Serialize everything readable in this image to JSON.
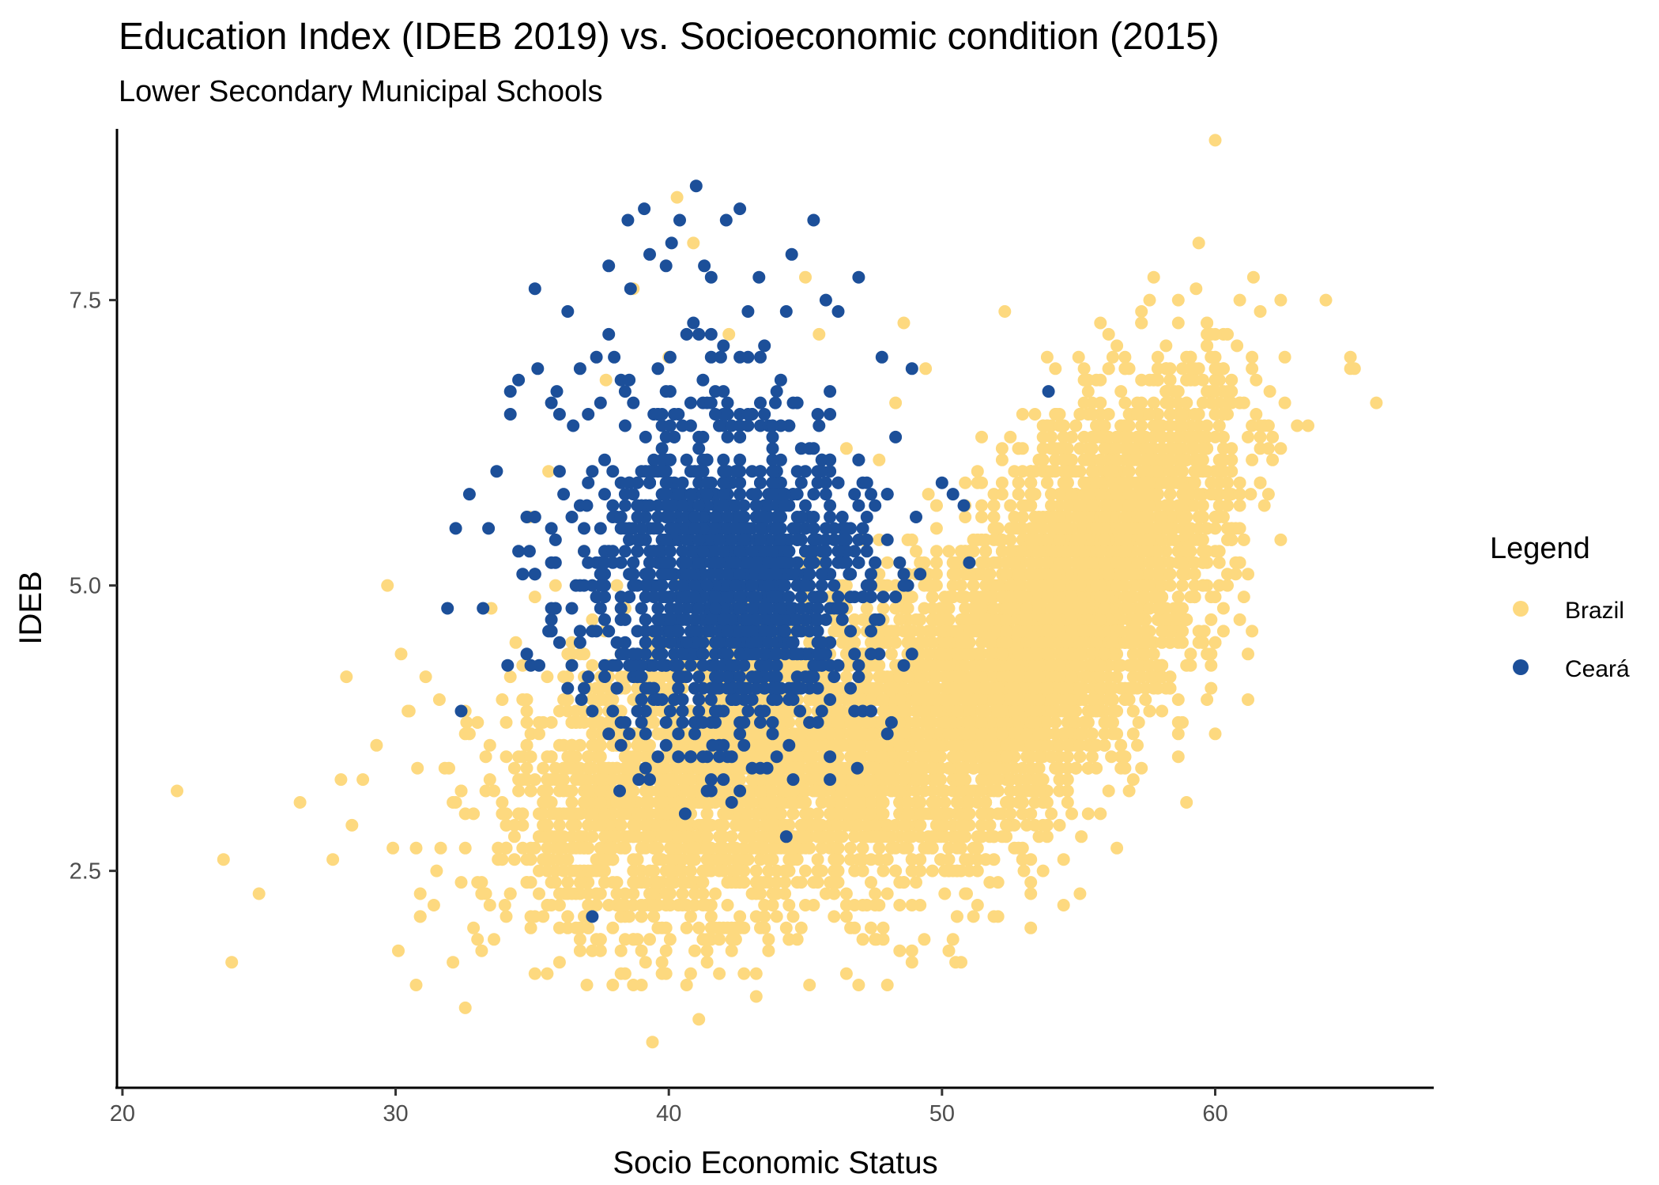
{
  "chart_data": {
    "type": "scatter",
    "title": "Education Index (IDEB 2019) vs. Socioeconomic condition (2015)",
    "subtitle": "Lower Secondary Municipal Schools",
    "xlabel": "Socio Economic Status",
    "ylabel": "IDEB",
    "xlim": [
      19.8,
      68
    ],
    "ylim": [
      0.6,
      9.0
    ],
    "x_ticks": [
      20,
      30,
      40,
      50,
      60
    ],
    "x_tick_labels": [
      "20",
      "30",
      "40",
      "50",
      "60"
    ],
    "y_ticks": [
      2.5,
      5.0,
      7.5
    ],
    "y_tick_labels": [
      "2.5",
      "5.0",
      "7.5"
    ],
    "grid": false,
    "legend": {
      "title": "Legend",
      "position": "right",
      "entries": [
        {
          "name": "Brazil",
          "color": "#FDD97F"
        },
        {
          "name": "Ceará",
          "color": "#1C4F99"
        }
      ]
    },
    "series": [
      {
        "name": "Brazil",
        "color": "#FDD97F",
        "points": [
          [
            22.0,
            3.2
          ],
          [
            23.7,
            2.6
          ],
          [
            24.0,
            1.7
          ],
          [
            25.0,
            2.3
          ],
          [
            26.5,
            3.1
          ],
          [
            27.7,
            2.6
          ],
          [
            28.0,
            3.3
          ],
          [
            28.2,
            4.2
          ],
          [
            28.4,
            2.9
          ],
          [
            28.8,
            3.3
          ],
          [
            29.3,
            3.6
          ],
          [
            29.7,
            5.0
          ],
          [
            29.9,
            2.7
          ],
          [
            30.1,
            1.8
          ],
          [
            30.2,
            4.4
          ],
          [
            30.5,
            3.9
          ],
          [
            30.8,
            3.4
          ],
          [
            31.1,
            4.2
          ],
          [
            31.4,
            2.2
          ],
          [
            31.6,
            4.0
          ],
          [
            32.2,
            3.1
          ],
          [
            32.6,
            3.8
          ],
          [
            33.0,
            2.4
          ],
          [
            33.5,
            4.8
          ],
          [
            34.0,
            2.2
          ],
          [
            34.4,
            4.5
          ],
          [
            34.9,
            5.6
          ],
          [
            35.6,
            6.0
          ],
          [
            36.2,
            2.3
          ],
          [
            37.0,
            1.5
          ],
          [
            37.7,
            6.8
          ],
          [
            38.7,
            7.6
          ],
          [
            39.4,
            1.0
          ],
          [
            40.0,
            7.0
          ],
          [
            40.3,
            8.4
          ],
          [
            40.9,
            8.0
          ],
          [
            41.4,
            1.7
          ],
          [
            42.2,
            7.2
          ],
          [
            43.2,
            1.4
          ],
          [
            44.3,
            2.0
          ],
          [
            45.0,
            7.7
          ],
          [
            45.5,
            7.2
          ],
          [
            46.5,
            6.2
          ],
          [
            47.6,
            1.9
          ],
          [
            48.0,
            1.5
          ],
          [
            48.3,
            6.6
          ],
          [
            48.6,
            7.3
          ],
          [
            49.4,
            6.9
          ],
          [
            50.5,
            1.7
          ],
          [
            51.3,
            2.2
          ],
          [
            52.3,
            7.4
          ],
          [
            53.0,
            2.5
          ],
          [
            54.2,
            6.5
          ],
          [
            55.0,
            7.0
          ],
          [
            56.2,
            3.5
          ],
          [
            57.3,
            7.3
          ],
          [
            58.3,
            6.1
          ],
          [
            59.3,
            7.6
          ],
          [
            60.1,
            6.9
          ],
          [
            60.8,
            7.1
          ],
          [
            61.4,
            7.7
          ],
          [
            62.0,
            6.7
          ],
          [
            63.4,
            6.4
          ],
          [
            65.9,
            6.6
          ],
          [
            59.6,
            4.6
          ],
          [
            61.3,
            5.8
          ],
          [
            57.2,
            3.8
          ],
          [
            55.1,
            2.8
          ],
          [
            50.9,
            2.3
          ],
          [
            46.1,
            2.4
          ]
        ]
      },
      {
        "name": "Ceará",
        "color": "#1C4F99",
        "points": [
          [
            31.9,
            4.8
          ],
          [
            32.2,
            5.5
          ],
          [
            32.4,
            3.9
          ],
          [
            32.7,
            5.8
          ],
          [
            33.2,
            4.8
          ],
          [
            33.4,
            5.5
          ],
          [
            33.7,
            6.0
          ],
          [
            34.1,
            4.3
          ],
          [
            34.5,
            6.8
          ],
          [
            34.9,
            5.3
          ],
          [
            35.2,
            6.9
          ],
          [
            35.6,
            4.6
          ],
          [
            35.9,
            6.7
          ],
          [
            36.3,
            7.4
          ],
          [
            36.5,
            6.4
          ],
          [
            36.8,
            4.0
          ],
          [
            37.0,
            5.7
          ],
          [
            37.2,
            2.1
          ],
          [
            37.5,
            6.6
          ],
          [
            37.8,
            3.7
          ],
          [
            38.0,
            7.0
          ],
          [
            38.2,
            3.2
          ],
          [
            38.5,
            8.2
          ],
          [
            38.6,
            7.6
          ],
          [
            38.9,
            3.3
          ],
          [
            39.1,
            8.3
          ],
          [
            39.3,
            7.9
          ],
          [
            39.6,
            6.5
          ],
          [
            39.9,
            3.6
          ],
          [
            40.1,
            8.0
          ],
          [
            40.4,
            8.2
          ],
          [
            40.6,
            3.0
          ],
          [
            40.9,
            7.3
          ],
          [
            41.0,
            8.5
          ],
          [
            41.3,
            7.8
          ],
          [
            41.6,
            3.6
          ],
          [
            41.9,
            7.0
          ],
          [
            42.1,
            8.2
          ],
          [
            42.3,
            3.5
          ],
          [
            42.6,
            8.3
          ],
          [
            42.9,
            7.0
          ],
          [
            43.3,
            7.7
          ],
          [
            43.6,
            3.4
          ],
          [
            43.9,
            6.6
          ],
          [
            44.3,
            7.4
          ],
          [
            44.5,
            7.9
          ],
          [
            44.8,
            3.9
          ],
          [
            45.3,
            8.2
          ],
          [
            45.5,
            6.4
          ],
          [
            45.9,
            4.0
          ],
          [
            46.2,
            7.4
          ],
          [
            46.6,
            5.1
          ],
          [
            46.9,
            3.4
          ],
          [
            47.4,
            3.9
          ],
          [
            47.8,
            7.0
          ],
          [
            48.0,
            5.8
          ],
          [
            48.3,
            6.3
          ],
          [
            48.6,
            4.3
          ],
          [
            48.9,
            6.9
          ],
          [
            49.2,
            5.1
          ],
          [
            50.0,
            5.9
          ],
          [
            50.8,
            5.7
          ],
          [
            53.9,
            6.7
          ],
          [
            44.3,
            2.8
          ],
          [
            42.3,
            3.1
          ]
        ]
      }
    ],
    "clusters": [
      {
        "series": "Brazil",
        "cx": 54.2,
        "cy": 4.6,
        "sx": 3.0,
        "sy": 0.95,
        "rho": 0.65,
        "n": 2600
      },
      {
        "series": "Brazil",
        "cx": 46.0,
        "cy": 3.6,
        "sx": 4.6,
        "sy": 0.75,
        "rho": 0.45,
        "n": 2200
      },
      {
        "series": "Brazil",
        "cx": 40.0,
        "cy": 3.3,
        "sx": 3.3,
        "sy": 0.65,
        "rho": 0.25,
        "n": 1200
      },
      {
        "series": "Brazil",
        "cx": 56.5,
        "cy": 5.6,
        "sx": 2.4,
        "sy": 0.7,
        "rho": 0.45,
        "n": 700
      },
      {
        "series": "Ceará",
        "cx": 42.4,
        "cy": 5.0,
        "sx": 2.4,
        "sy": 0.62,
        "rho": 0.05,
        "n": 1150
      },
      {
        "series": "Ceará",
        "cx": 40.5,
        "cy": 5.4,
        "sx": 2.6,
        "sy": 0.95,
        "rho": 0.0,
        "n": 260
      }
    ]
  }
}
